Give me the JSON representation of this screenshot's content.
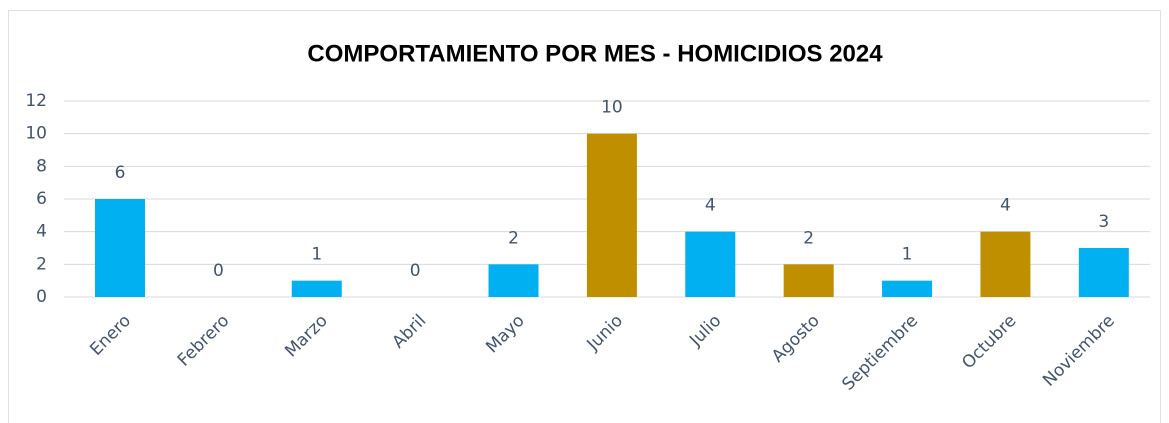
{
  "chart_data": {
    "type": "bar",
    "title": "COMPORTAMIENTO POR MES - HOMICIDIOS 2024",
    "categories": [
      "Enero",
      "Febrero",
      "Marzo",
      "Abril",
      "Mayo",
      "Junio",
      "Julio",
      "Agosto",
      "Septiembre",
      "Octubre",
      "Noviembre"
    ],
    "values": [
      6,
      0,
      1,
      0,
      2,
      10,
      4,
      2,
      1,
      4,
      3
    ],
    "colors": [
      "#00b0f0",
      "#00b0f0",
      "#00b0f0",
      "#00b0f0",
      "#00b0f0",
      "#bf8f00",
      "#00b0f0",
      "#bf8f00",
      "#00b0f0",
      "#bf8f00",
      "#00b0f0"
    ],
    "ylim": [
      0,
      12
    ],
    "yticks": [
      0,
      2,
      4,
      6,
      8,
      10,
      12
    ],
    "grid": true
  }
}
